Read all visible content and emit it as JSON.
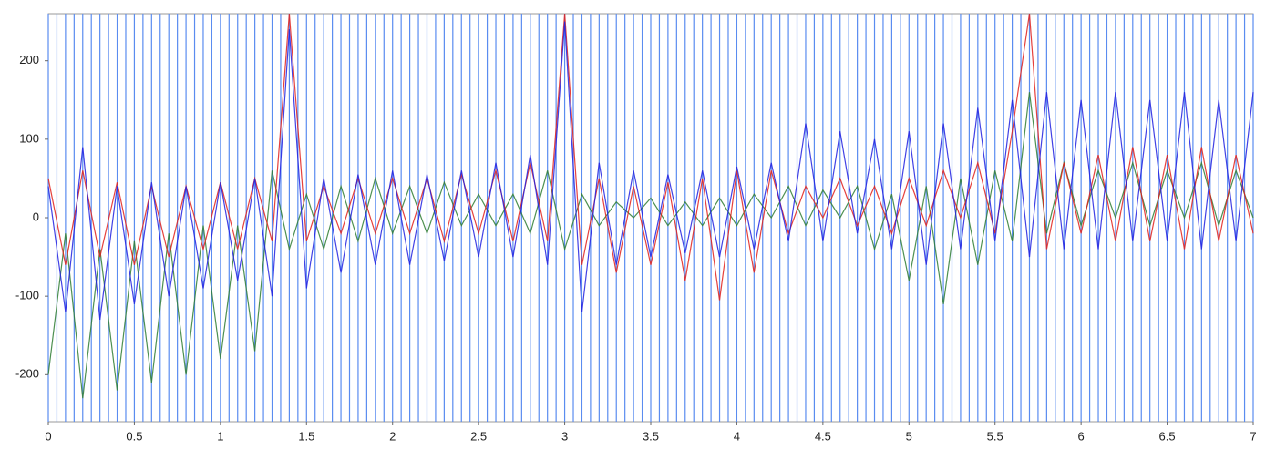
{
  "chart_data": {
    "type": "line",
    "x": [
      0,
      0.1,
      0.2,
      0.3,
      0.4,
      0.5,
      0.6,
      0.7,
      0.8,
      0.9,
      1,
      1.1,
      1.2,
      1.3,
      1.4,
      1.5,
      1.6,
      1.7,
      1.8,
      1.9,
      2,
      2.1,
      2.2,
      2.3,
      2.4,
      2.5,
      2.6,
      2.7,
      2.8,
      2.9,
      3,
      3.1,
      3.2,
      3.3,
      3.4,
      3.5,
      3.6,
      3.7,
      3.8,
      3.9,
      4,
      4.1,
      4.2,
      4.3,
      4.4,
      4.5,
      4.6,
      4.7,
      4.8,
      4.9,
      5,
      5.1,
      5.2,
      5.3,
      5.4,
      5.5,
      5.6,
      5.7,
      5.8,
      5.9,
      6,
      6.1,
      6.2,
      6.3,
      6.4,
      6.5,
      6.6,
      6.7,
      6.8,
      6.9,
      7
    ],
    "series": [
      {
        "color": "#2e7d32",
        "values": [
          -200,
          -20,
          -230,
          -40,
          -220,
          -30,
          -210,
          -20,
          -200,
          -10,
          -180,
          -10,
          -170,
          60,
          -40,
          30,
          -40,
          40,
          -30,
          50,
          -20,
          40,
          -20,
          45,
          -10,
          30,
          -10,
          30,
          -20,
          60,
          -40,
          30,
          -10,
          20,
          0,
          25,
          -10,
          20,
          -10,
          25,
          -10,
          30,
          0,
          40,
          -10,
          35,
          0,
          40,
          -40,
          30,
          -80,
          40,
          -110,
          50,
          -60,
          60,
          -30,
          160,
          -20,
          70,
          -10,
          60,
          0,
          70,
          -10,
          60,
          0,
          70,
          -10,
          60,
          0
        ]
      },
      {
        "color": "#e0201b",
        "values": [
          50,
          -60,
          60,
          -50,
          45,
          -60,
          40,
          -50,
          40,
          -40,
          45,
          -40,
          50,
          -30,
          260,
          -30,
          40,
          -20,
          50,
          -20,
          50,
          -20,
          50,
          -30,
          55,
          -20,
          60,
          -30,
          70,
          -30,
          260,
          -60,
          50,
          -70,
          40,
          -60,
          45,
          -80,
          50,
          -105,
          60,
          -70,
          60,
          -20,
          40,
          0,
          50,
          -10,
          40,
          -20,
          50,
          -10,
          60,
          0,
          70,
          -20,
          110,
          260,
          -40,
          70,
          -20,
          80,
          -30,
          90,
          -30,
          80,
          -40,
          90,
          -30,
          80,
          -20
        ]
      },
      {
        "color": "#2020e0",
        "values": [
          40,
          -120,
          90,
          -130,
          40,
          -110,
          45,
          -100,
          40,
          -90,
          45,
          -80,
          50,
          -100,
          240,
          -90,
          50,
          -70,
          55,
          -60,
          60,
          -60,
          55,
          -55,
          60,
          -50,
          70,
          -50,
          80,
          -60,
          250,
          -120,
          70,
          -60,
          60,
          -50,
          55,
          -45,
          60,
          -50,
          65,
          -40,
          70,
          -30,
          120,
          -30,
          110,
          -20,
          100,
          -40,
          110,
          -60,
          120,
          -40,
          140,
          -30,
          150,
          -50,
          160,
          -40,
          150,
          -40,
          160,
          -30,
          150,
          -30,
          160,
          -40,
          150,
          -30,
          160
        ]
      }
    ],
    "vlines": [
      0,
      0.05,
      0.1,
      0.15,
      0.2,
      0.25,
      0.3,
      0.35,
      0.4,
      0.45,
      0.5,
      0.55,
      0.6,
      0.65,
      0.7,
      0.75,
      0.8,
      0.85,
      0.9,
      0.95,
      1,
      1.05,
      1.1,
      1.15,
      1.2,
      1.25,
      1.3,
      1.35,
      1.4,
      1.45,
      1.5,
      1.55,
      1.6,
      1.65,
      1.7,
      1.75,
      1.8,
      1.85,
      1.9,
      1.95,
      2,
      2.05,
      2.1,
      2.15,
      2.2,
      2.25,
      2.3,
      2.35,
      2.4,
      2.45,
      2.5,
      2.55,
      2.6,
      2.65,
      2.7,
      2.75,
      2.8,
      2.85,
      2.9,
      2.95,
      3,
      3.05,
      3.1,
      3.15,
      3.2,
      3.25,
      3.3,
      3.35,
      3.4,
      3.45,
      3.5,
      3.55,
      3.6,
      3.65,
      3.7,
      3.75,
      3.8,
      3.85,
      3.9,
      3.95,
      4,
      4.05,
      4.1,
      4.15,
      4.2,
      4.25,
      4.3,
      4.35,
      4.4,
      4.45,
      4.5,
      4.55,
      4.6,
      4.65,
      4.7,
      4.75,
      4.8,
      4.85,
      4.9,
      4.95,
      5,
      5.05,
      5.1,
      5.15,
      5.2,
      5.25,
      5.3,
      5.35,
      5.4,
      5.45,
      5.5,
      5.55,
      5.6,
      5.65,
      5.7,
      5.75,
      5.8,
      5.85,
      5.9,
      5.95,
      6,
      6.05,
      6.1,
      6.15,
      6.2,
      6.25,
      6.3,
      6.35,
      6.4,
      6.45,
      6.5,
      6.55,
      6.6,
      6.65,
      6.7,
      6.75,
      6.8,
      6.85,
      6.9,
      6.95,
      7
    ],
    "vline_color": "#5a8cf0",
    "xlim": [
      0,
      7
    ],
    "ylim": [
      -260,
      260
    ],
    "xticks": [
      0,
      0.5,
      1,
      1.5,
      2,
      2.5,
      3,
      3.5,
      4,
      4.5,
      5,
      5.5,
      6,
      6.5,
      7
    ],
    "yticks": [
      -200,
      -100,
      0,
      100,
      200
    ]
  }
}
